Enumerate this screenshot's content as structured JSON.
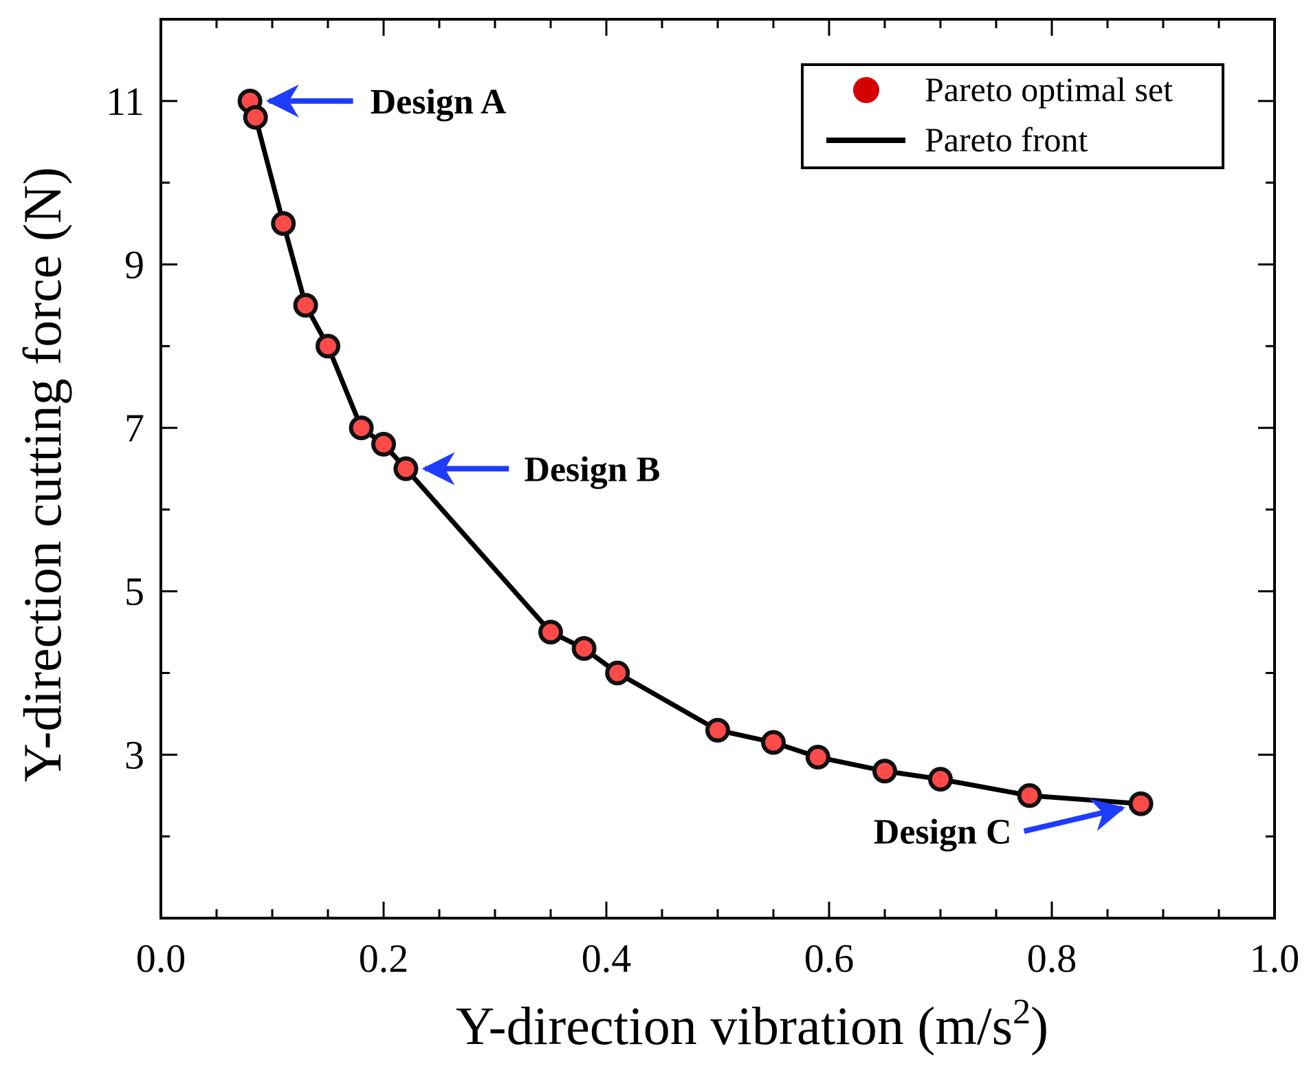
{
  "chart_data": {
    "type": "scatter",
    "title": "",
    "xlabel": "Y-direction vibration (m/s",
    "xlabel_sup": "2",
    "xlabel_close": ")",
    "ylabel": "Y-direction cutting force (N)",
    "xlim": [
      0.0,
      1.0
    ],
    "ylim": [
      1.0,
      12.0
    ],
    "x_ticks": [
      0.0,
      0.2,
      0.4,
      0.6,
      0.8,
      1.0
    ],
    "x_tick_labels": [
      "0.0",
      "0.2",
      "0.4",
      "0.6",
      "0.8",
      "1.0"
    ],
    "y_ticks": [
      3,
      5,
      7,
      9,
      11
    ],
    "y_tick_labels": [
      "3",
      "5",
      "7",
      "9",
      "11"
    ],
    "grid": false,
    "legend_position": "top-right",
    "series": [
      {
        "name": "Pareto optimal set",
        "kind": "markers",
        "color": "#d40000",
        "fill": "#ff4a4a",
        "x": [
          0.08,
          0.085,
          0.11,
          0.13,
          0.15,
          0.18,
          0.2,
          0.22,
          0.35,
          0.38,
          0.41,
          0.5,
          0.55,
          0.59,
          0.65,
          0.7,
          0.78,
          0.88
        ],
        "y": [
          11.0,
          10.8,
          9.5,
          8.5,
          8.0,
          7.0,
          6.8,
          6.5,
          4.5,
          4.3,
          4.0,
          3.3,
          3.15,
          2.97,
          2.8,
          2.7,
          2.5,
          2.4
        ]
      },
      {
        "name": "Pareto front",
        "kind": "line",
        "color": "#000000",
        "x": [
          0.08,
          0.085,
          0.11,
          0.13,
          0.15,
          0.18,
          0.2,
          0.22,
          0.35,
          0.38,
          0.41,
          0.5,
          0.55,
          0.59,
          0.65,
          0.7,
          0.78,
          0.88
        ],
        "y": [
          11.0,
          10.8,
          9.5,
          8.5,
          8.0,
          7.0,
          6.8,
          6.5,
          4.5,
          4.3,
          4.0,
          3.3,
          3.15,
          2.97,
          2.8,
          2.7,
          2.5,
          2.4
        ]
      }
    ],
    "annotations": [
      {
        "text": "Design A",
        "target_x": 0.08,
        "target_y": 11.0,
        "color": "#1e3cff"
      },
      {
        "text": "Design B",
        "target_x": 0.22,
        "target_y": 6.5,
        "color": "#1e3cff"
      },
      {
        "text": "Design C",
        "target_x": 0.88,
        "target_y": 2.4,
        "color": "#1e3cff"
      }
    ]
  }
}
